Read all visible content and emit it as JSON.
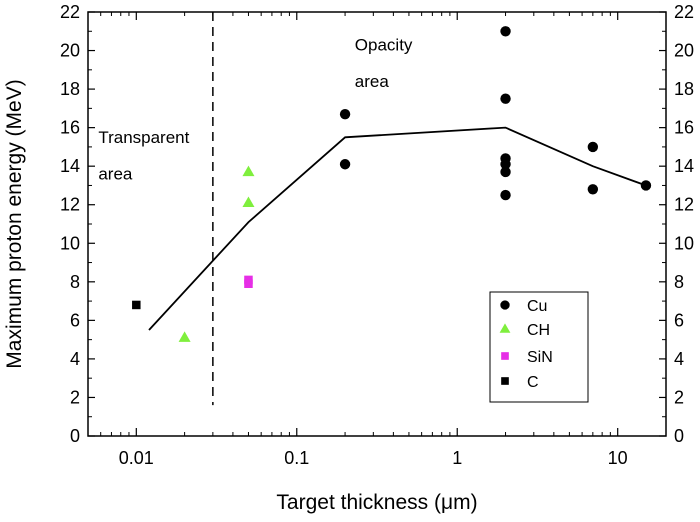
{
  "chart_data": {
    "type": "scatter",
    "xlabel": "Target thickness  (μm)",
    "ylabel": "Maximum proton energy (MeV)",
    "x_scale": "log",
    "xlim": [
      0.005,
      20
    ],
    "ylim": [
      0,
      22
    ],
    "x_ticks": [
      {
        "value": 0.01,
        "label": "0.01"
      },
      {
        "value": 0.1,
        "label": "0.1"
      },
      {
        "value": 1,
        "label": "1"
      },
      {
        "value": 10,
        "label": "10"
      }
    ],
    "y_ticks": [
      0,
      2,
      4,
      6,
      8,
      10,
      12,
      14,
      16,
      18,
      20,
      22
    ],
    "grid": false,
    "legend_position": "bottom-right",
    "series": [
      {
        "name": "Cu",
        "marker": "circle",
        "color": "#000000",
        "points": [
          [
            0.2,
            16.7
          ],
          [
            0.2,
            14.1
          ],
          [
            2,
            21.0
          ],
          [
            2,
            17.5
          ],
          [
            2,
            14.4
          ],
          [
            2,
            14.1
          ],
          [
            2,
            13.7
          ],
          [
            2,
            12.5
          ],
          [
            7,
            15.0
          ],
          [
            7,
            12.8
          ],
          [
            15,
            13.0
          ]
        ]
      },
      {
        "name": "CH",
        "marker": "triangle",
        "color": "#7fef3d",
        "points": [
          [
            0.02,
            5.1
          ],
          [
            0.05,
            13.7
          ],
          [
            0.05,
            12.1
          ]
        ]
      },
      {
        "name": "SiN",
        "marker": "square",
        "color": "#e62ee6",
        "points": [
          [
            0.05,
            8.1
          ],
          [
            0.05,
            7.9
          ]
        ]
      },
      {
        "name": "C",
        "marker": "square",
        "color": "#000000",
        "points": [
          [
            0.01,
            6.8
          ]
        ]
      }
    ],
    "trend_line": {
      "color": "#000000",
      "points": [
        [
          0.012,
          5.5
        ],
        [
          0.05,
          11.1
        ],
        [
          0.2,
          15.5
        ],
        [
          2,
          16.0
        ],
        [
          7,
          14.0
        ],
        [
          15,
          13.0
        ]
      ]
    },
    "boundary_line": {
      "x": 0.03,
      "y_from": 1.6,
      "y_to": 22,
      "style": "dashed"
    },
    "annotations": [
      {
        "lines": [
          "Transparent",
          "area"
        ],
        "x": 0.0058,
        "y": [
          15.2,
          13.3
        ]
      },
      {
        "lines": [
          "Opacity",
          "area"
        ],
        "x": 0.23,
        "y": [
          20.0,
          18.1
        ]
      }
    ]
  }
}
